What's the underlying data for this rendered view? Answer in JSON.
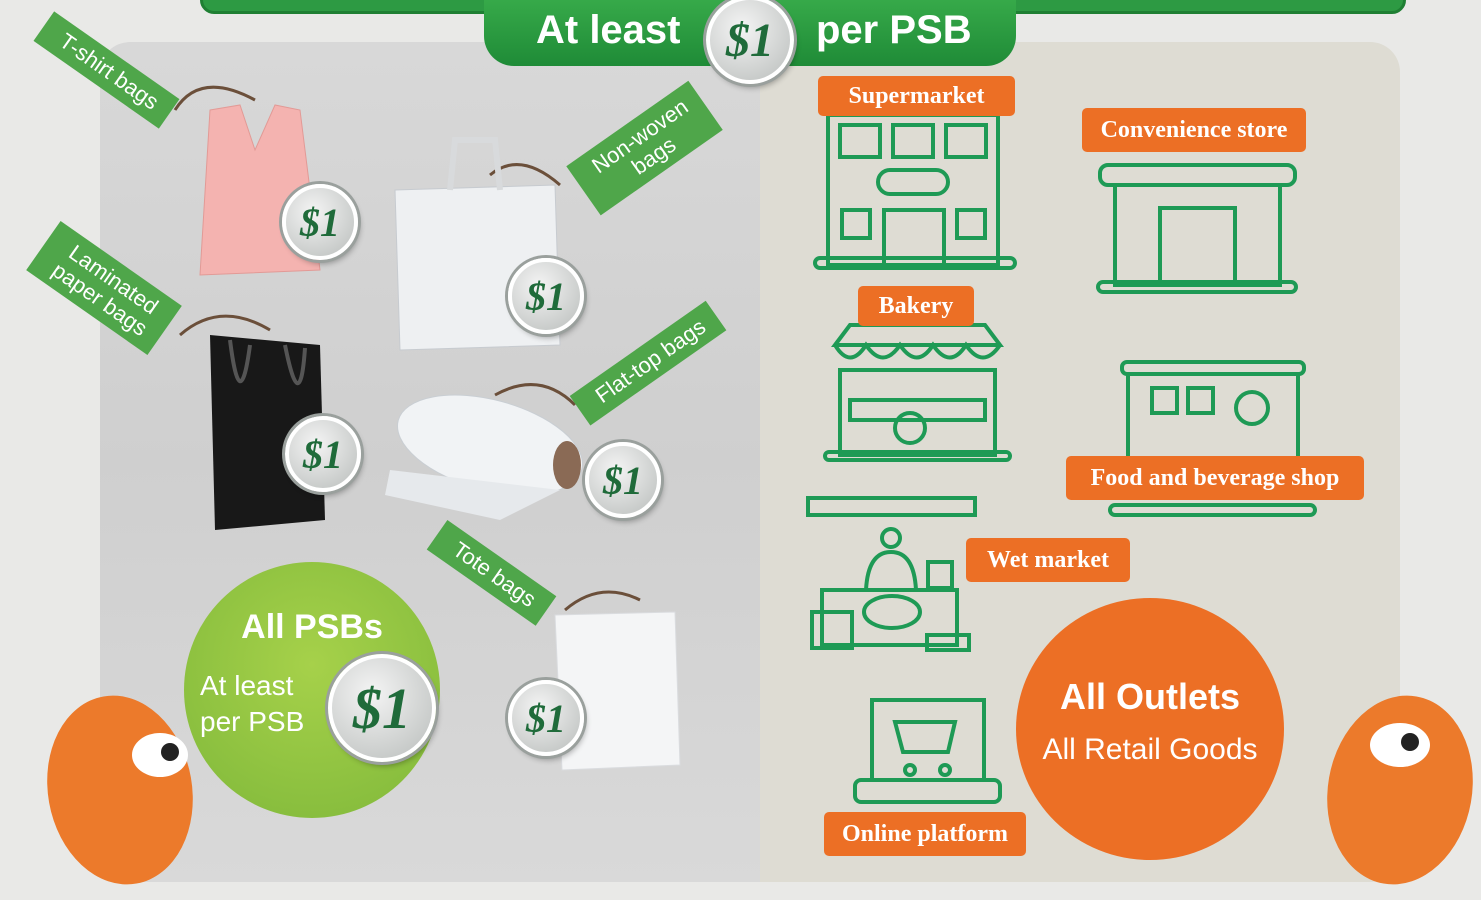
{
  "header": {
    "before": "At least",
    "price": "$1",
    "after": "per PSB"
  },
  "bags": [
    {
      "tag": [
        "T-shirt bags"
      ],
      "price": "$1"
    },
    {
      "tag": [
        "Non-woven",
        "bags"
      ],
      "price": "$1"
    },
    {
      "tag": [
        "Laminated",
        "paper bags"
      ],
      "price": "$1"
    },
    {
      "tag": [
        "Flat-top bags"
      ],
      "price": "$1"
    },
    {
      "tag": [
        "Tote bags"
      ],
      "price": "$1"
    }
  ],
  "left_bubble": {
    "title": "All PSBs",
    "lines": [
      "At least",
      "per PSB"
    ],
    "price": "$1"
  },
  "outlets": [
    "Supermarket",
    "Convenience store",
    "Bakery",
    "Food and beverage shop",
    "Wet market",
    "Online platform"
  ],
  "right_bubble": {
    "title": "All Outlets",
    "subtitle": "All Retail Goods"
  }
}
